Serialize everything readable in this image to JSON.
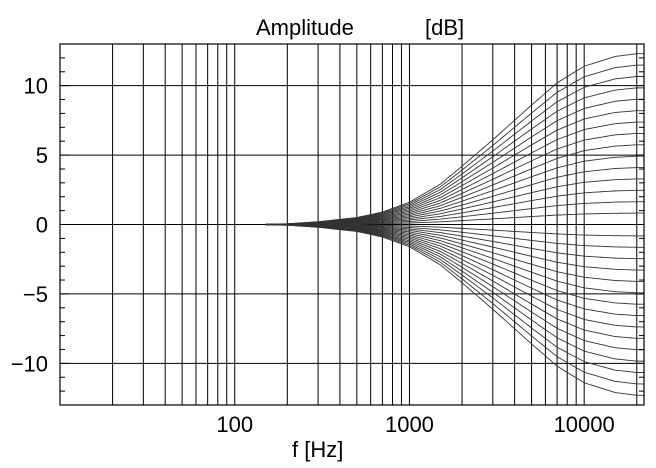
{
  "chart_data": {
    "type": "line",
    "title": "Amplitude",
    "title_unit": "[dB]",
    "xlabel": "f [Hz]",
    "ylabel": "",
    "xscale": "log",
    "xlim": [
      10,
      22000
    ],
    "ylim": [
      -13,
      13
    ],
    "x_tick_labels": [
      "100",
      "1000",
      "10000"
    ],
    "y_tick_labels": [
      "10",
      "5",
      "0",
      "−5",
      "−10"
    ],
    "y_ticks": [
      10,
      5,
      0,
      -5,
      -10
    ],
    "grid": true,
    "legend": "none",
    "line_color": "#333333",
    "curve_family": {
      "shape": "high-shelf filter responses",
      "count": 31,
      "gain_min_db": -12,
      "gain_max_db": 12,
      "flat_until_hz": 200,
      "transition_center_hz": 3000,
      "x": [
        100,
        200,
        300,
        500,
        700,
        1000,
        1500,
        2000,
        3000,
        5000,
        7000,
        10000,
        15000,
        20000
      ],
      "max_curve_values": [
        0,
        0.05,
        0.2,
        0.5,
        0.9,
        1.6,
        2.9,
        4.2,
        6.1,
        8.6,
        10.2,
        11.4,
        12.1,
        12.3
      ],
      "min_curve_values": [
        0,
        -0.05,
        -0.2,
        -0.5,
        -0.9,
        -1.6,
        -2.9,
        -4.2,
        -6.1,
        -8.6,
        -10.2,
        -11.4,
        -12.1,
        -12.3
      ]
    }
  }
}
